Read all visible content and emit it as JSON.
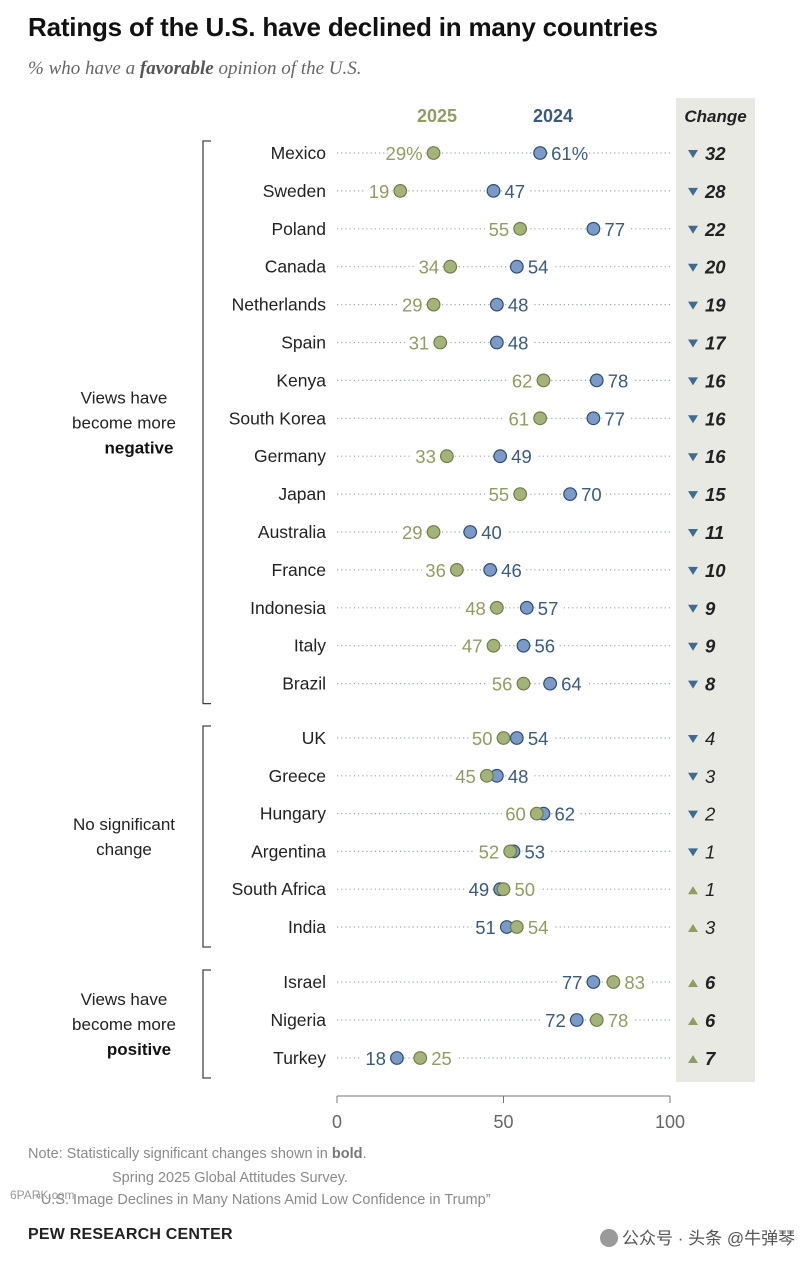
{
  "title": "Ratings of the U.S. have declined in many countries",
  "subtitle": {
    "prefix": "% who have a ",
    "bold": "favorable",
    "suffix": " opinion of the U.S."
  },
  "chart_data": {
    "type": "dot",
    "series": [
      {
        "name": "2025",
        "color": "#a3b37a"
      },
      {
        "name": "2024",
        "color": "#7b9ac8"
      }
    ],
    "change_header": "Change",
    "xlim": [
      0,
      100
    ],
    "xticks": [
      0,
      50,
      100
    ],
    "groups": [
      {
        "label_lines": [
          "Views have",
          "become more"
        ],
        "label_bold": "negative",
        "rows": [
          {
            "country": "Mexico",
            "v2025": 29,
            "v2024": 61,
            "l2025": "29%",
            "l2024": "61%",
            "change": "32",
            "dir": "down",
            "bold": true
          },
          {
            "country": "Sweden",
            "v2025": 19,
            "v2024": 47,
            "l2025": "19",
            "l2024": "47",
            "change": "28",
            "dir": "down",
            "bold": true
          },
          {
            "country": "Poland",
            "v2025": 55,
            "v2024": 77,
            "l2025": "55",
            "l2024": "77",
            "change": "22",
            "dir": "down",
            "bold": true
          },
          {
            "country": "Canada",
            "v2025": 34,
            "v2024": 54,
            "l2025": "34",
            "l2024": "54",
            "change": "20",
            "dir": "down",
            "bold": true
          },
          {
            "country": "Netherlands",
            "v2025": 29,
            "v2024": 48,
            "l2025": "29",
            "l2024": "48",
            "change": "19",
            "dir": "down",
            "bold": true
          },
          {
            "country": "Spain",
            "v2025": 31,
            "v2024": 48,
            "l2025": "31",
            "l2024": "48",
            "change": "17",
            "dir": "down",
            "bold": true
          },
          {
            "country": "Kenya",
            "v2025": 62,
            "v2024": 78,
            "l2025": "62",
            "l2024": "78",
            "change": "16",
            "dir": "down",
            "bold": true
          },
          {
            "country": "South Korea",
            "v2025": 61,
            "v2024": 77,
            "l2025": "61",
            "l2024": "77",
            "change": "16",
            "dir": "down",
            "bold": true
          },
          {
            "country": "Germany",
            "v2025": 33,
            "v2024": 49,
            "l2025": "33",
            "l2024": "49",
            "change": "16",
            "dir": "down",
            "bold": true
          },
          {
            "country": "Japan",
            "v2025": 55,
            "v2024": 70,
            "l2025": "55",
            "l2024": "70",
            "change": "15",
            "dir": "down",
            "bold": true
          },
          {
            "country": "Australia",
            "v2025": 29,
            "v2024": 40,
            "l2025": "29",
            "l2024": "40",
            "change": "11",
            "dir": "down",
            "bold": true
          },
          {
            "country": "France",
            "v2025": 36,
            "v2024": 46,
            "l2025": "36",
            "l2024": "46",
            "change": "10",
            "dir": "down",
            "bold": true
          },
          {
            "country": "Indonesia",
            "v2025": 48,
            "v2024": 57,
            "l2025": "48",
            "l2024": "57",
            "change": "9",
            "dir": "down",
            "bold": true
          },
          {
            "country": "Italy",
            "v2025": 47,
            "v2024": 56,
            "l2025": "47",
            "l2024": "56",
            "change": "9",
            "dir": "down",
            "bold": true
          },
          {
            "country": "Brazil",
            "v2025": 56,
            "v2024": 64,
            "l2025": "56",
            "l2024": "64",
            "change": "8",
            "dir": "down",
            "bold": true
          }
        ]
      },
      {
        "label_lines": [
          "No significant",
          "change"
        ],
        "label_bold": "",
        "rows": [
          {
            "country": "UK",
            "v2025": 50,
            "v2024": 54,
            "l2025": "50",
            "l2024": "54",
            "change": "4",
            "dir": "down",
            "bold": false
          },
          {
            "country": "Greece",
            "v2025": 45,
            "v2024": 48,
            "l2025": "45",
            "l2024": "48",
            "change": "3",
            "dir": "down",
            "bold": false
          },
          {
            "country": "Hungary",
            "v2025": 60,
            "v2024": 62,
            "l2025": "60",
            "l2024": "62",
            "change": "2",
            "dir": "down",
            "bold": false
          },
          {
            "country": "Argentina",
            "v2025": 52,
            "v2024": 53,
            "l2025": "52",
            "l2024": "53",
            "change": "1",
            "dir": "down",
            "bold": false
          },
          {
            "country": "South Africa",
            "v2025": 50,
            "v2024": 49,
            "l2025": "50",
            "l2024": "49",
            "change": "1",
            "dir": "up",
            "bold": false
          },
          {
            "country": "India",
            "v2025": 54,
            "v2024": 51,
            "l2025": "54",
            "l2024": "51",
            "change": "3",
            "dir": "up",
            "bold": false
          }
        ]
      },
      {
        "label_lines": [
          "Views have",
          "become more"
        ],
        "label_bold": "positive",
        "rows": [
          {
            "country": "Israel",
            "v2025": 83,
            "v2024": 77,
            "l2025": "83",
            "l2024": "77",
            "change": "6",
            "dir": "up",
            "bold": true
          },
          {
            "country": "Nigeria",
            "v2025": 78,
            "v2024": 72,
            "l2025": "78",
            "l2024": "72",
            "change": "6",
            "dir": "up",
            "bold": true
          },
          {
            "country": "Turkey",
            "v2025": 25,
            "v2024": 18,
            "l2025": "25",
            "l2024": "18",
            "change": "7",
            "dir": "up",
            "bold": true
          }
        ]
      }
    ]
  },
  "footer": {
    "note_prefix": "Note: Statistically significant changes shown in ",
    "note_bold": "bold",
    "note_suffix": ".",
    "source": "Spring 2025 Global Attitudes Survey.",
    "report": "“U.S. Image Declines in Many Nations Amid Low Confidence in Trump”",
    "brand": "PEW RESEARCH CENTER"
  },
  "watermarks": {
    "left": "6PARK.com",
    "right": "公众号 · 头条 @牛弹琴"
  },
  "colors": {
    "c2025": "#a3b37a",
    "c2024": "#7b9ac8",
    "text2025": "#8f9d62",
    "text2024": "#3a5a7e",
    "change_bg": "#e9e9e3",
    "down": "#3f6b8e",
    "up": "#8f9d62"
  }
}
